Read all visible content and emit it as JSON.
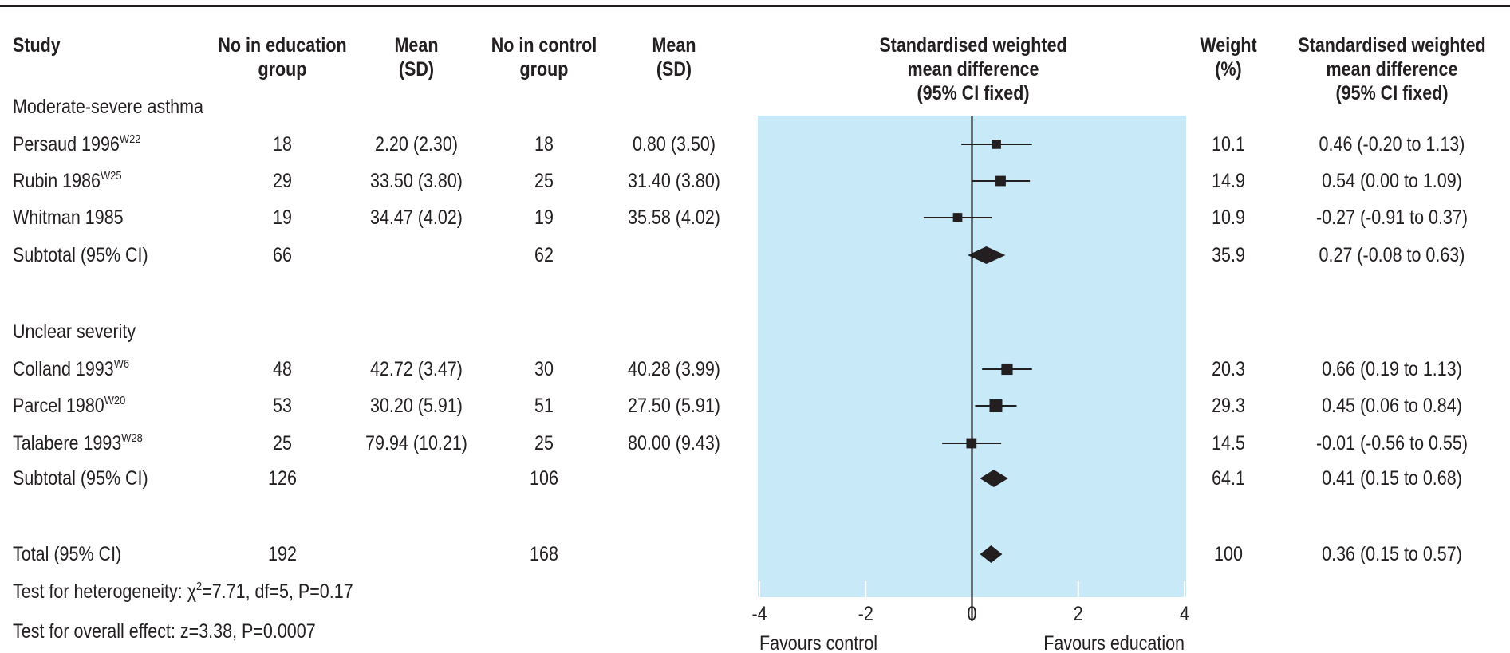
{
  "headers": {
    "study": "Study",
    "n_edu": [
      "No in education",
      "group"
    ],
    "mean_edu": [
      "Mean",
      "(SD)"
    ],
    "n_ctl": [
      "No in control",
      "group"
    ],
    "mean_ctl": [
      "Mean",
      "(SD)"
    ],
    "plot": [
      "Standardised weighted",
      "mean difference",
      "(95% CI fixed)"
    ],
    "weight": [
      "Weight",
      "(%)"
    ],
    "smd": [
      "Standardised weighted",
      "mean difference",
      "(95% CI fixed)"
    ]
  },
  "groups": [
    {
      "label": "Moderate-severe asthma",
      "studies": [
        {
          "name": "Persaud 1996",
          "ref": "W22",
          "n_edu": "18",
          "mean_edu": "2.20 (2.30)",
          "n_ctl": "18",
          "mean_ctl": "0.80 (3.50)",
          "weight": "10.1",
          "smd_text": "0.46 (-0.20 to 1.13)"
        },
        {
          "name": "Rubin 1986",
          "ref": "W25",
          "n_edu": "29",
          "mean_edu": "33.50 (3.80)",
          "n_ctl": "25",
          "mean_ctl": "31.40 (3.80)",
          "weight": "14.9",
          "smd_text": "0.54 (0.00 to 1.09)"
        },
        {
          "name": "Whitman 1985",
          "ref": "",
          "n_edu": "19",
          "mean_edu": "34.47 (4.02)",
          "n_ctl": "19",
          "mean_ctl": "35.58 (4.02)",
          "weight": "10.9",
          "smd_text": "-0.27 (-0.91 to 0.37)"
        }
      ],
      "subtotal": {
        "label": "Subtotal (95% CI)",
        "n_edu": "66",
        "n_ctl": "62",
        "weight": "35.9",
        "smd_text": "0.27 (-0.08 to 0.63)"
      }
    },
    {
      "label": "Unclear severity",
      "studies": [
        {
          "name": "Colland 1993",
          "ref": "W6",
          "n_edu": "48",
          "mean_edu": "42.72 (3.47)",
          "n_ctl": "30",
          "mean_ctl": "40.28 (3.99)",
          "weight": "20.3",
          "smd_text": "0.66 (0.19 to 1.13)"
        },
        {
          "name": "Parcel 1980",
          "ref": "W20",
          "n_edu": "53",
          "mean_edu": "30.20 (5.91)",
          "n_ctl": "51",
          "mean_ctl": "27.50 (5.91)",
          "weight": "29.3",
          "smd_text": "0.45 (0.06 to 0.84)"
        },
        {
          "name": "Talabere 1993",
          "ref": "W28",
          "n_edu": "25",
          "mean_edu": "79.94 (10.21)",
          "n_ctl": "25",
          "mean_ctl": "80.00 (9.43)",
          "weight": "14.5",
          "smd_text": "-0.01 (-0.56 to 0.55)"
        }
      ],
      "subtotal": {
        "label": "Subtotal (95% CI)",
        "n_edu": "126",
        "n_ctl": "106",
        "weight": "64.1",
        "smd_text": "0.41 (0.15 to 0.68)"
      }
    }
  ],
  "total": {
    "label": "Total (95% CI)",
    "n_edu": "192",
    "n_ctl": "168",
    "weight": "100",
    "smd_text": "0.36 (0.15 to 0.57)"
  },
  "tests": {
    "heterogeneity_pre": "Test for heterogeneity: ",
    "chi": "χ",
    "sq": "2",
    "heterogeneity_post": "=7.71, df=5, P=0.17",
    "overall": "Test for overall effect: z=3.38, P=0.0007"
  },
  "colors": {
    "plot_background": "#c8e9f8",
    "ink": "#231f20"
  },
  "chart_data": {
    "type": "forest",
    "xlim": [
      -4,
      4
    ],
    "xticks": [
      -4,
      -2,
      0,
      2,
      4
    ],
    "xlabel_left": "Favours control",
    "xlabel_right": "Favours education",
    "rows": [
      {
        "label": "Persaud 1996",
        "kind": "study",
        "estimate": 0.46,
        "lower": -0.2,
        "upper": 1.13,
        "weight": 10.1
      },
      {
        "label": "Rubin 1986",
        "kind": "study",
        "estimate": 0.54,
        "lower": 0.0,
        "upper": 1.09,
        "weight": 14.9
      },
      {
        "label": "Whitman 1985",
        "kind": "study",
        "estimate": -0.27,
        "lower": -0.91,
        "upper": 0.37,
        "weight": 10.9
      },
      {
        "label": "Subtotal (95% CI)",
        "kind": "summary",
        "estimate": 0.27,
        "lower": -0.08,
        "upper": 0.63,
        "weight": 35.9
      },
      {
        "label": "Colland 1993",
        "kind": "study",
        "estimate": 0.66,
        "lower": 0.19,
        "upper": 1.13,
        "weight": 20.3
      },
      {
        "label": "Parcel 1980",
        "kind": "study",
        "estimate": 0.45,
        "lower": 0.06,
        "upper": 0.84,
        "weight": 29.3
      },
      {
        "label": "Talabere 1993",
        "kind": "study",
        "estimate": -0.01,
        "lower": -0.56,
        "upper": 0.55,
        "weight": 14.5
      },
      {
        "label": "Subtotal (95% CI)",
        "kind": "summary",
        "estimate": 0.41,
        "lower": 0.15,
        "upper": 0.68,
        "weight": 64.1
      },
      {
        "label": "Total (95% CI)",
        "kind": "summary",
        "estimate": 0.36,
        "lower": 0.15,
        "upper": 0.57,
        "weight": 100
      }
    ]
  }
}
